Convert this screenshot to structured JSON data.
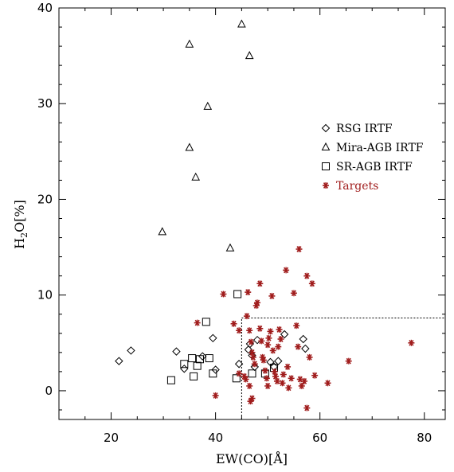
{
  "chart_data": {
    "type": "scatter",
    "title": "",
    "xlabel": "EW(CO)[Å]",
    "ylabel_main": "H",
    "ylabel_sub": "2",
    "ylabel_rest": "O[%]",
    "xlim": [
      10,
      84
    ],
    "ylim": [
      -3,
      40
    ],
    "xticks": [
      20,
      40,
      60,
      80
    ],
    "yticks": [
      0,
      10,
      20,
      30,
      40
    ],
    "grid": false,
    "legend_position": "right-middle",
    "series": [
      {
        "name": "RSG IRTF",
        "marker": "diamond",
        "color": "#000000",
        "points": [
          [
            21.5,
            3.1
          ],
          [
            23.8,
            4.2
          ],
          [
            32.5,
            4.1
          ],
          [
            34.0,
            2.3
          ],
          [
            37.5,
            3.6
          ],
          [
            39.5,
            5.5
          ],
          [
            40.0,
            2.2
          ],
          [
            44.5,
            2.8
          ],
          [
            46.3,
            4.3
          ],
          [
            46.6,
            4.9
          ],
          [
            47.0,
            3.7
          ],
          [
            47.5,
            2.5
          ],
          [
            48.0,
            5.3
          ],
          [
            50.5,
            3.0
          ],
          [
            51.2,
            2.5
          ],
          [
            52.0,
            3.1
          ],
          [
            53.2,
            5.9
          ],
          [
            56.8,
            5.4
          ],
          [
            57.2,
            4.4
          ]
        ]
      },
      {
        "name": "Mira-AGB IRTF",
        "marker": "triangle",
        "color": "#000000",
        "points": [
          [
            29.8,
            16.6
          ],
          [
            35.0,
            36.2
          ],
          [
            35.0,
            25.4
          ],
          [
            36.2,
            22.3
          ],
          [
            38.5,
            29.7
          ],
          [
            42.8,
            14.9
          ],
          [
            45.0,
            38.3
          ],
          [
            46.5,
            35.0
          ]
        ]
      },
      {
        "name": "SR-AGB IRTF",
        "marker": "square",
        "color": "#000000",
        "points": [
          [
            31.5,
            1.1
          ],
          [
            34.0,
            2.8
          ],
          [
            35.5,
            3.4
          ],
          [
            35.8,
            1.5
          ],
          [
            36.5,
            2.6
          ],
          [
            37.0,
            3.3
          ],
          [
            38.2,
            7.2
          ],
          [
            38.8,
            3.4
          ],
          [
            39.5,
            1.8
          ],
          [
            44.2,
            10.1
          ],
          [
            44.0,
            1.3
          ],
          [
            47.0,
            1.8
          ],
          [
            49.5,
            1.8
          ],
          [
            51.2,
            2.4
          ]
        ]
      },
      {
        "name": "Targets",
        "marker": "asterisk",
        "color": "#a01c1c",
        "points": [
          [
            36.5,
            7.1
          ],
          [
            40.0,
            -0.5
          ],
          [
            41.5,
            10.1
          ],
          [
            43.5,
            7.0
          ],
          [
            44.5,
            6.3
          ],
          [
            44.5,
            1.8
          ],
          [
            45.5,
            1.5
          ],
          [
            45.8,
            1.2
          ],
          [
            46.0,
            7.8
          ],
          [
            46.2,
            10.3
          ],
          [
            46.5,
            6.3
          ],
          [
            46.8,
            5.1
          ],
          [
            47.0,
            4.0
          ],
          [
            47.2,
            3.5
          ],
          [
            47.5,
            2.8
          ],
          [
            47.8,
            8.9
          ],
          [
            48.0,
            9.2
          ],
          [
            46.5,
            0.5
          ],
          [
            47.0,
            -0.8
          ],
          [
            46.7,
            -1.1
          ],
          [
            48.5,
            6.5
          ],
          [
            48.5,
            11.2
          ],
          [
            48.8,
            5.2
          ],
          [
            49.0,
            3.5
          ],
          [
            49.2,
            3.2
          ],
          [
            49.5,
            2.1
          ],
          [
            49.8,
            1.3
          ],
          [
            50.0,
            0.5
          ],
          [
            50.0,
            4.8
          ],
          [
            50.2,
            5.5
          ],
          [
            50.5,
            6.2
          ],
          [
            50.8,
            9.9
          ],
          [
            51.0,
            4.2
          ],
          [
            51.3,
            2.0
          ],
          [
            51.5,
            1.5
          ],
          [
            51.8,
            1.0
          ],
          [
            52.0,
            4.6
          ],
          [
            52.2,
            6.4
          ],
          [
            52.5,
            5.4
          ],
          [
            52.8,
            0.8
          ],
          [
            53.0,
            1.7
          ],
          [
            53.5,
            12.6
          ],
          [
            53.8,
            2.5
          ],
          [
            54.0,
            0.3
          ],
          [
            54.5,
            1.3
          ],
          [
            55.0,
            10.2
          ],
          [
            55.5,
            6.8
          ],
          [
            55.8,
            4.6
          ],
          [
            56.0,
            14.8
          ],
          [
            56.2,
            1.2
          ],
          [
            56.5,
            0.5
          ],
          [
            57.0,
            1.0
          ],
          [
            57.5,
            12.0
          ],
          [
            57.5,
            -1.8
          ],
          [
            58.0,
            3.5
          ],
          [
            58.5,
            11.2
          ],
          [
            59.0,
            1.6
          ],
          [
            61.5,
            0.8
          ],
          [
            65.5,
            3.1
          ],
          [
            77.5,
            5.0
          ]
        ]
      }
    ],
    "reference_lines": {
      "vertical_x": 45,
      "vertical_y_range": [
        -3,
        7.6
      ],
      "horizontal_y": 7.6,
      "horizontal_x_range": [
        45,
        84
      ]
    }
  }
}
